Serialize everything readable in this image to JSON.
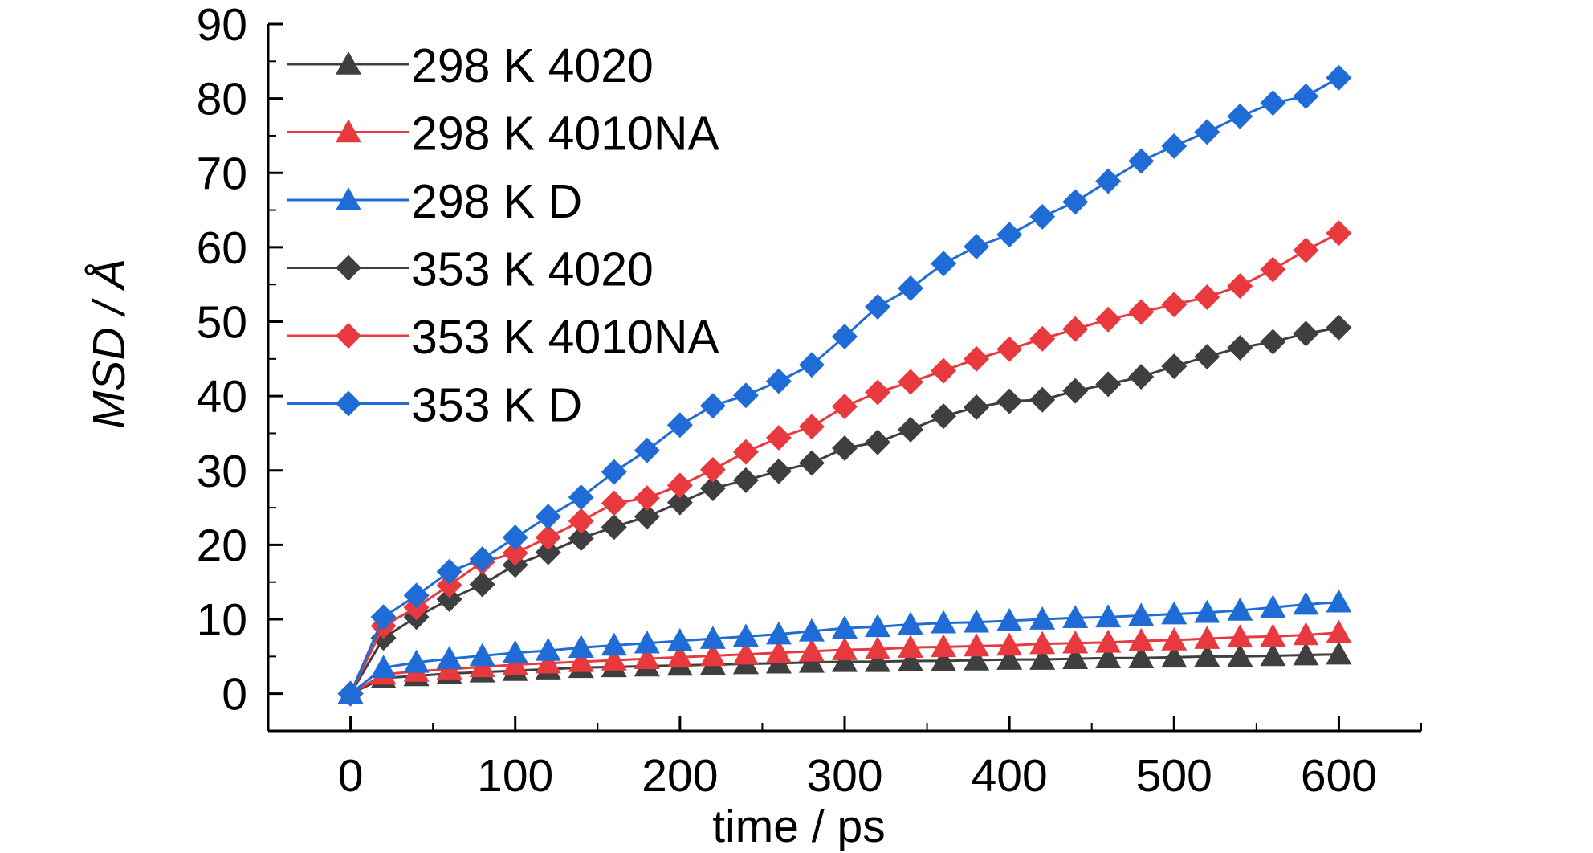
{
  "chart_data": {
    "type": "line",
    "title": "",
    "xlabel": "time / ps",
    "ylabel": "MSD / Å",
    "xlim": [
      -50,
      650
    ],
    "ylim": [
      -5,
      90
    ],
    "xticks": [
      0,
      100,
      200,
      300,
      400,
      500,
      600
    ],
    "yticks": [
      0,
      10,
      20,
      30,
      40,
      50,
      60,
      70,
      80,
      90
    ],
    "grid": false,
    "legend_position": "top-left",
    "x": [
      0,
      20,
      40,
      60,
      80,
      100,
      120,
      140,
      160,
      180,
      200,
      220,
      240,
      260,
      280,
      300,
      320,
      340,
      360,
      380,
      400,
      420,
      440,
      460,
      480,
      500,
      520,
      540,
      560,
      580,
      600
    ],
    "series": [
      {
        "name": "298 K 4020",
        "color": "#3f3f3f",
        "marker": "triangle",
        "values": [
          0,
          2.1,
          2.4,
          2.7,
          2.9,
          3.1,
          3.3,
          3.5,
          3.6,
          3.7,
          3.8,
          3.9,
          4.0,
          4.1,
          4.2,
          4.3,
          4.3,
          4.4,
          4.4,
          4.5,
          4.6,
          4.6,
          4.7,
          4.8,
          4.8,
          4.9,
          5.0,
          5.0,
          5.1,
          5.2,
          5.3
        ]
      },
      {
        "name": "298 K 4010NA",
        "color": "#e8393e",
        "marker": "triangle",
        "values": [
          0,
          2.6,
          3.0,
          3.3,
          3.6,
          3.9,
          4.1,
          4.3,
          4.5,
          4.7,
          4.9,
          5.1,
          5.3,
          5.5,
          5.7,
          5.9,
          6.0,
          6.2,
          6.3,
          6.4,
          6.5,
          6.7,
          6.8,
          6.9,
          7.1,
          7.2,
          7.4,
          7.6,
          7.7,
          7.9,
          8.2
        ]
      },
      {
        "name": "298 K D",
        "color": "#1f6cd6",
        "marker": "triangle",
        "values": [
          0,
          3.5,
          4.2,
          4.7,
          5.1,
          5.5,
          5.8,
          6.2,
          6.5,
          6.8,
          7.1,
          7.4,
          7.7,
          8.0,
          8.4,
          8.8,
          9.0,
          9.3,
          9.5,
          9.6,
          9.8,
          10.0,
          10.2,
          10.3,
          10.5,
          10.7,
          10.9,
          11.2,
          11.6,
          12.0,
          12.3
        ]
      },
      {
        "name": "353 K 4020",
        "color": "#3f3f3f",
        "marker": "diamond",
        "values": [
          0,
          7.5,
          10.3,
          12.7,
          14.7,
          17.3,
          19.0,
          20.9,
          22.4,
          23.8,
          25.7,
          27.6,
          28.7,
          29.9,
          31.0,
          33.0,
          33.8,
          35.5,
          37.3,
          38.5,
          39.3,
          39.5,
          40.7,
          41.6,
          42.6,
          44.0,
          45.3,
          46.5,
          47.3,
          48.4,
          49.2
        ]
      },
      {
        "name": "353 K 4010NA",
        "color": "#e8393e",
        "marker": "diamond",
        "values": [
          0,
          9.1,
          11.6,
          14.6,
          17.7,
          18.9,
          21.0,
          23.2,
          25.6,
          26.3,
          28.0,
          30.1,
          32.5,
          34.4,
          35.9,
          38.6,
          40.5,
          41.9,
          43.4,
          45.0,
          46.3,
          47.7,
          49.0,
          50.3,
          51.3,
          52.3,
          53.3,
          54.8,
          57.0,
          59.6,
          61.9
        ]
      },
      {
        "name": "353 K D",
        "color": "#1f6cd6",
        "marker": "diamond",
        "values": [
          0,
          10.3,
          13.2,
          16.4,
          18.1,
          21.0,
          23.8,
          26.4,
          29.8,
          32.7,
          36.1,
          38.7,
          40.1,
          42.0,
          44.2,
          48.0,
          52.0,
          54.5,
          57.8,
          60.1,
          61.7,
          64.1,
          66.1,
          68.9,
          71.6,
          73.6,
          75.5,
          77.6,
          79.4,
          80.3,
          82.8
        ]
      }
    ]
  }
}
